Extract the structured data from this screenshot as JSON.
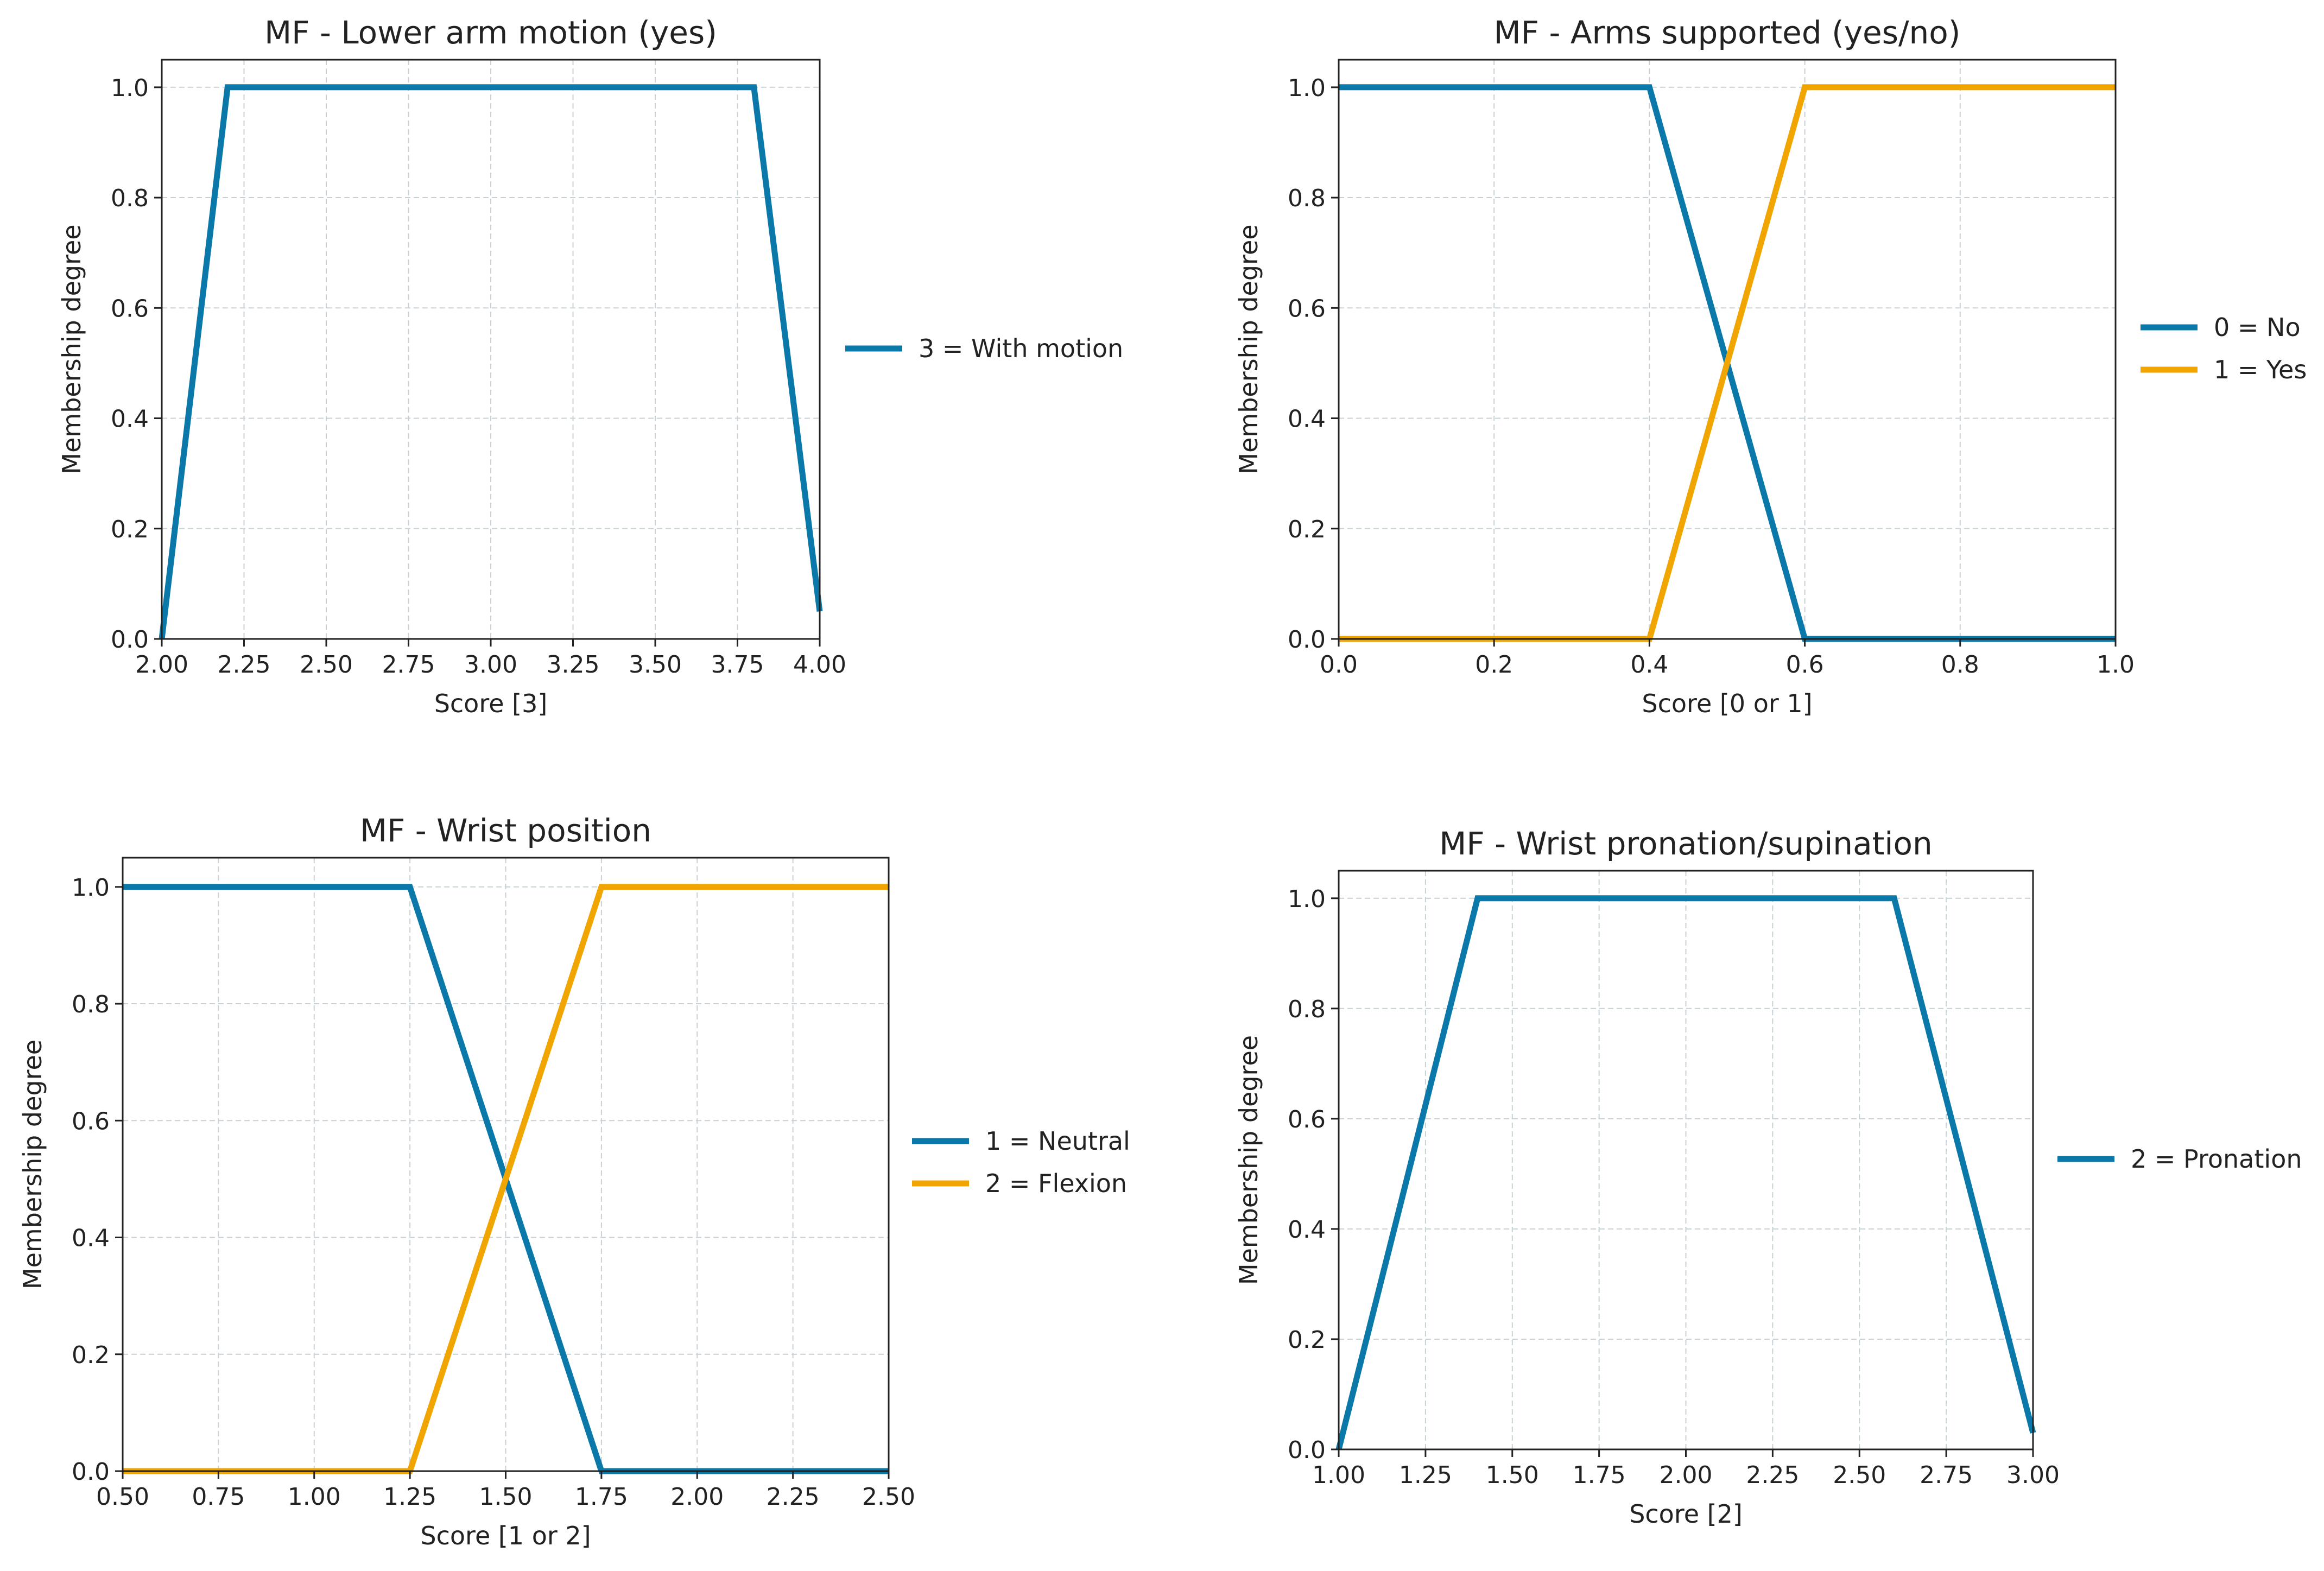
{
  "colors": {
    "blue": "#0a78a8",
    "orange": "#f0a500"
  },
  "chart_data": [
    {
      "type": "line",
      "title": "MF - Lower arm motion (yes)",
      "xlabel": "Score [3]",
      "ylabel": "Membership degree",
      "xlim": [
        2.0,
        4.0
      ],
      "ylim": [
        0.0,
        1.05
      ],
      "xticks": [
        "2.00",
        "2.25",
        "2.50",
        "2.75",
        "3.00",
        "3.25",
        "3.50",
        "3.75",
        "4.00"
      ],
      "yticks": [
        "0.0",
        "0.2",
        "0.4",
        "0.6",
        "0.8",
        "1.0"
      ],
      "grid": true,
      "legend_position": "outside-right",
      "series": [
        {
          "name": "3 = With motion",
          "color": "#0a78a8",
          "x": [
            2.0,
            2.2,
            3.8,
            4.0
          ],
          "y": [
            0.0,
            1.0,
            1.0,
            0.05
          ]
        }
      ]
    },
    {
      "type": "line",
      "title": "MF - Arms supported (yes/no)",
      "xlabel": "Score [0 or 1]",
      "ylabel": "Membership degree",
      "xlim": [
        0.0,
        1.0
      ],
      "ylim": [
        0.0,
        1.05
      ],
      "xticks": [
        "0.0",
        "0.2",
        "0.4",
        "0.6",
        "0.8",
        "1.0"
      ],
      "yticks": [
        "0.0",
        "0.2",
        "0.4",
        "0.6",
        "0.8",
        "1.0"
      ],
      "grid": true,
      "legend_position": "outside-right",
      "series": [
        {
          "name": "0 = No",
          "color": "#0a78a8",
          "x": [
            0.0,
            0.4,
            0.6,
            1.0
          ],
          "y": [
            1.0,
            1.0,
            0.0,
            0.0
          ]
        },
        {
          "name": "1 = Yes",
          "color": "#f0a500",
          "x": [
            0.0,
            0.4,
            0.6,
            1.0
          ],
          "y": [
            0.0,
            0.0,
            1.0,
            1.0
          ]
        }
      ]
    },
    {
      "type": "line",
      "title": "MF - Wrist position",
      "xlabel": "Score [1 or 2]",
      "ylabel": "Membership degree",
      "xlim": [
        0.5,
        2.5
      ],
      "ylim": [
        0.0,
        1.05
      ],
      "xticks": [
        "0.50",
        "0.75",
        "1.00",
        "1.25",
        "1.50",
        "1.75",
        "2.00",
        "2.25",
        "2.50"
      ],
      "yticks": [
        "0.0",
        "0.2",
        "0.4",
        "0.6",
        "0.8",
        "1.0"
      ],
      "grid": true,
      "legend_position": "outside-right",
      "series": [
        {
          "name": "1 = Neutral",
          "color": "#0a78a8",
          "x": [
            0.5,
            1.25,
            1.75,
            2.5
          ],
          "y": [
            1.0,
            1.0,
            0.0,
            0.0
          ]
        },
        {
          "name": "2 = Flexion",
          "color": "#f0a500",
          "x": [
            0.5,
            1.25,
            1.75,
            2.5
          ],
          "y": [
            0.0,
            0.0,
            1.0,
            1.0
          ]
        }
      ]
    },
    {
      "type": "line",
      "title": "MF - Wrist pronation/supination",
      "xlabel": "Score [2]",
      "ylabel": "Membership degree",
      "xlim": [
        1.0,
        3.0
      ],
      "ylim": [
        0.0,
        1.05
      ],
      "xticks": [
        "1.00",
        "1.25",
        "1.50",
        "1.75",
        "2.00",
        "2.25",
        "2.50",
        "2.75",
        "3.00"
      ],
      "yticks": [
        "0.0",
        "0.2",
        "0.4",
        "0.6",
        "0.8",
        "1.0"
      ],
      "grid": true,
      "legend_position": "outside-right",
      "series": [
        {
          "name": "2 = Pronation",
          "color": "#0a78a8",
          "x": [
            1.0,
            1.4,
            2.6,
            3.0
          ],
          "y": [
            0.0,
            1.0,
            1.0,
            0.03
          ]
        }
      ]
    }
  ]
}
